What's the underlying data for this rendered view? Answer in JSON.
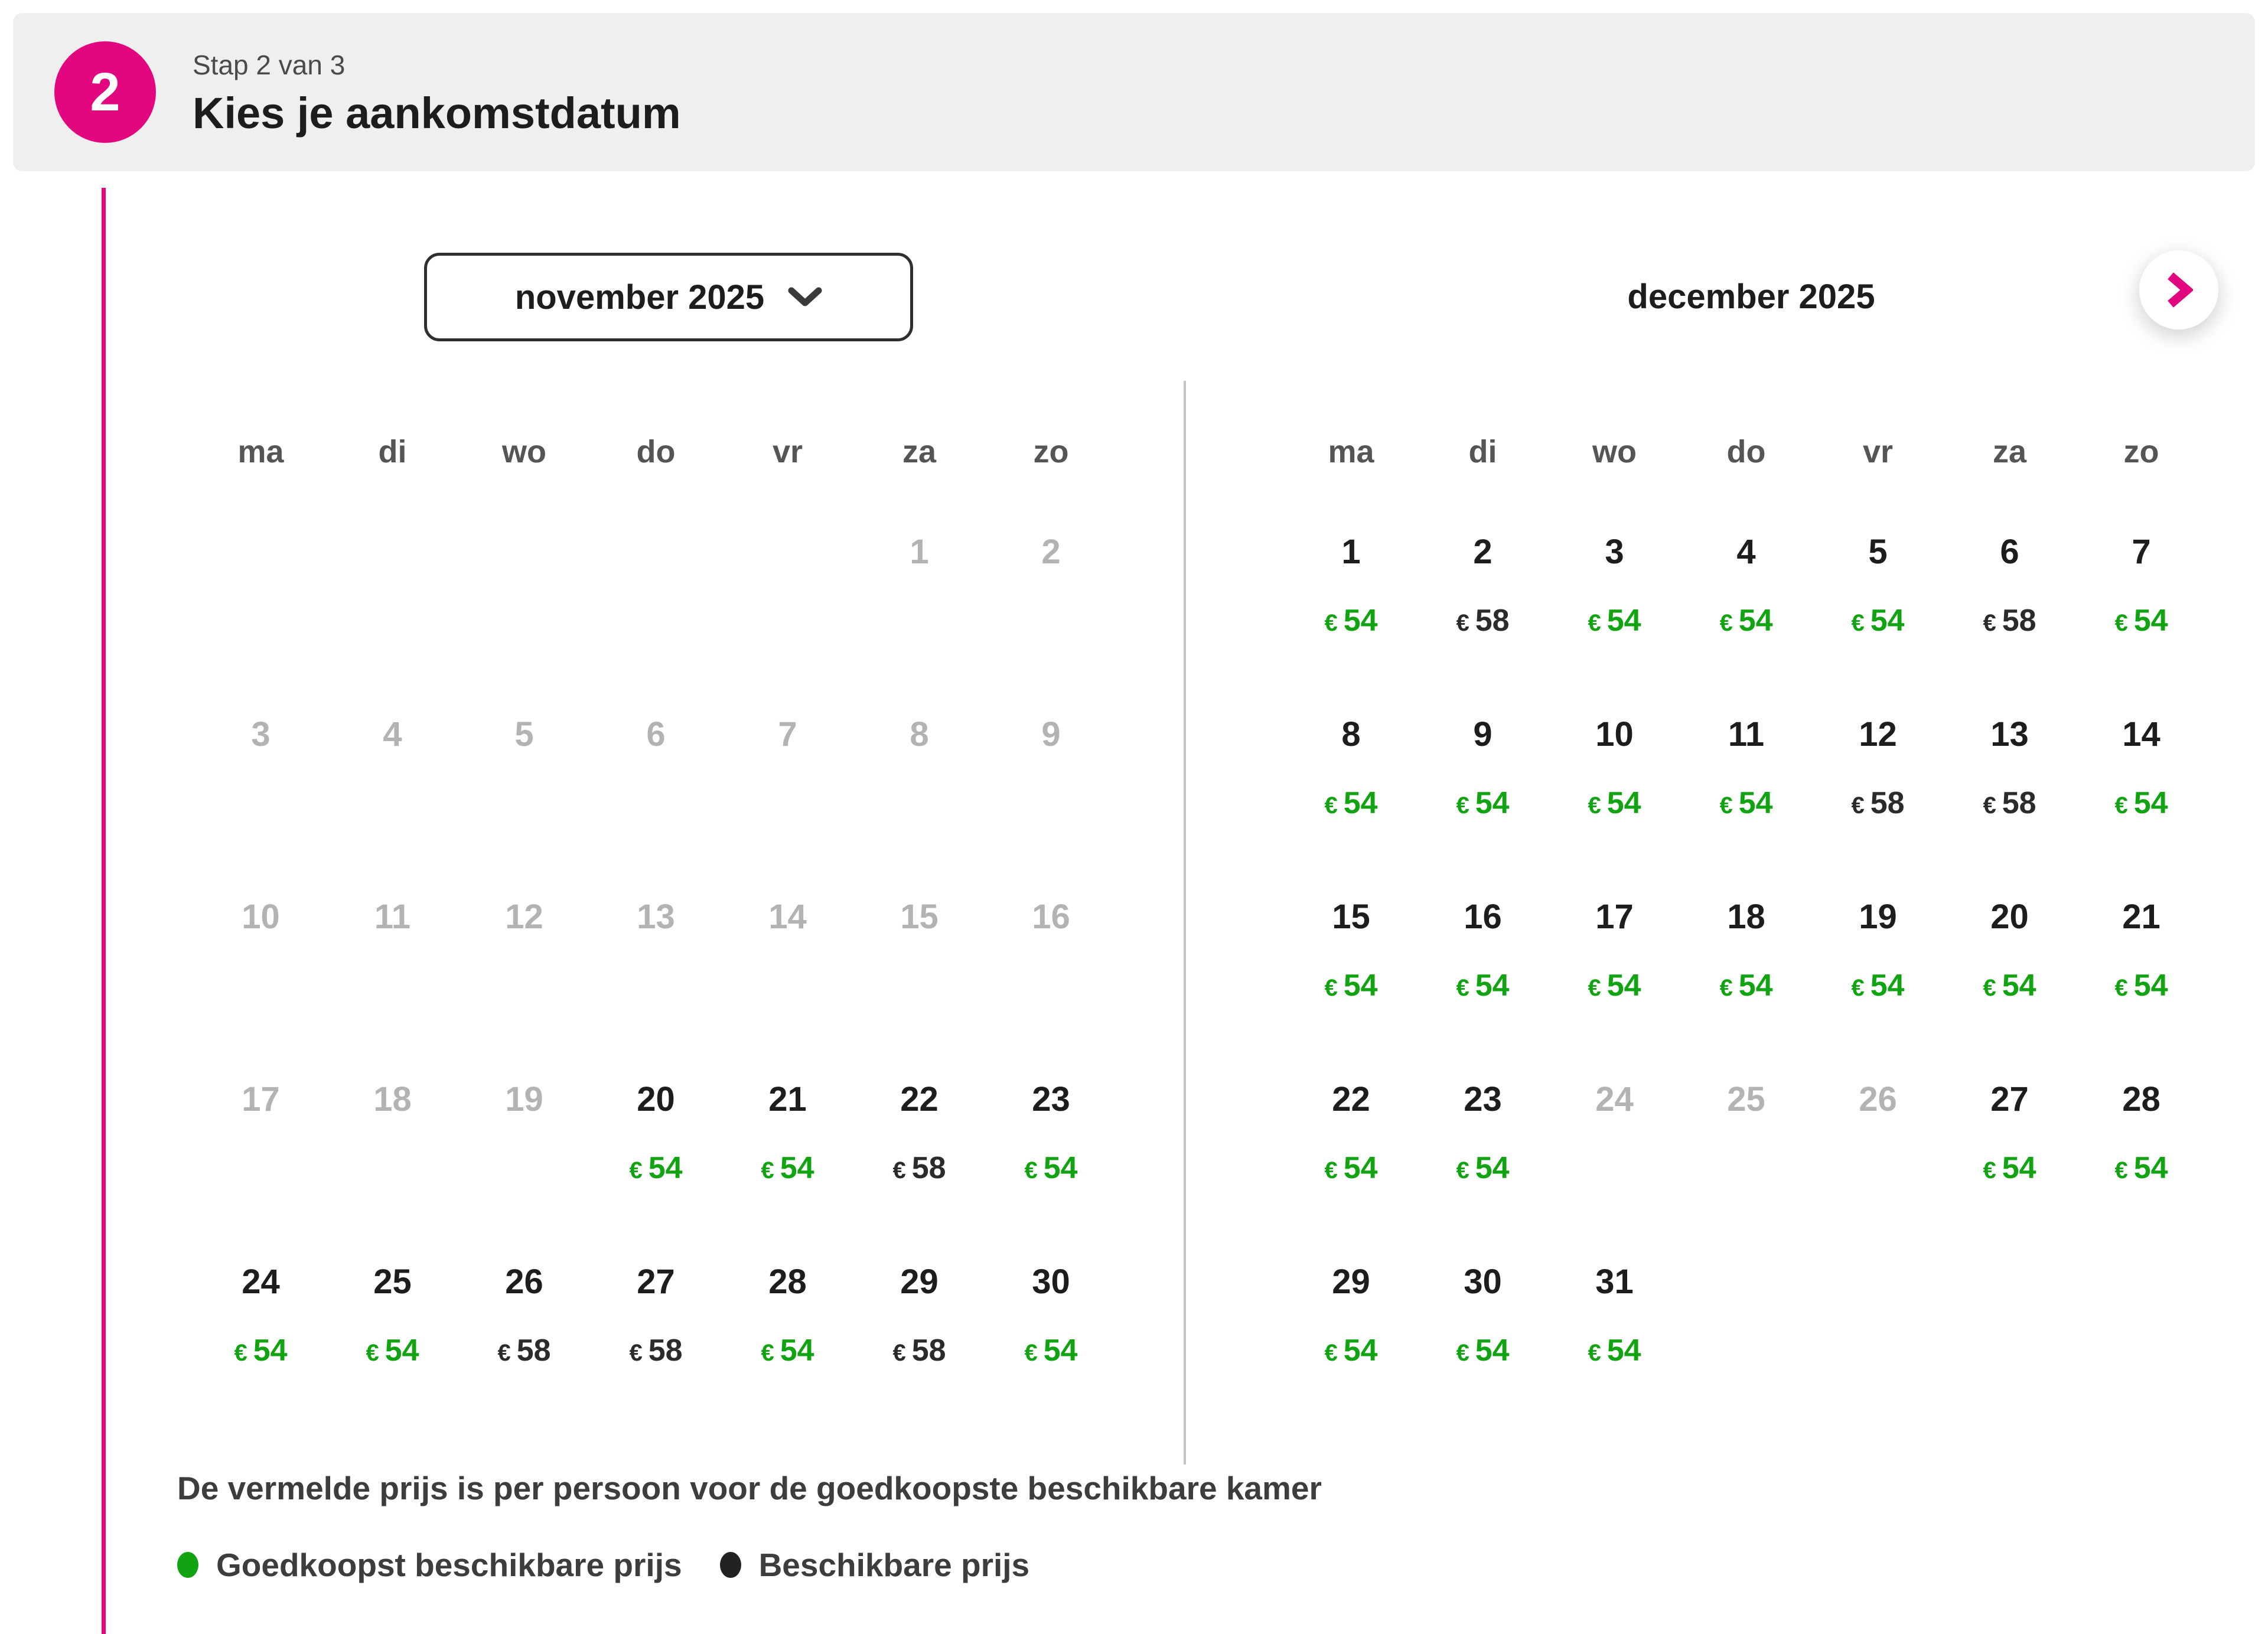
{
  "colors": {
    "pink": "#e2077e",
    "green": "#12a312",
    "price_dark": "#2b2b2b",
    "disabled_gray": "#b3b3b3",
    "header_bg": "#efefef"
  },
  "header": {
    "step_number": "2",
    "step_label": "Stap 2 van 3",
    "title": "Kies je aankomstdatum"
  },
  "calendar": {
    "selector_label": "november 2025",
    "second_month_title": "december 2025",
    "weekdays": [
      "ma",
      "di",
      "wo",
      "do",
      "vr",
      "za",
      "zo"
    ],
    "currency": "€",
    "months": [
      {
        "title": "november 2025",
        "weeks": [
          [
            null,
            null,
            null,
            null,
            null,
            {
              "day": "1",
              "state": "disabled"
            },
            {
              "day": "2",
              "state": "disabled"
            }
          ],
          [
            {
              "day": "3",
              "state": "disabled"
            },
            {
              "day": "4",
              "state": "disabled"
            },
            {
              "day": "5",
              "state": "disabled"
            },
            {
              "day": "6",
              "state": "disabled"
            },
            {
              "day": "7",
              "state": "disabled"
            },
            {
              "day": "8",
              "state": "disabled"
            },
            {
              "day": "9",
              "state": "disabled"
            }
          ],
          [
            {
              "day": "10",
              "state": "disabled"
            },
            {
              "day": "11",
              "state": "disabled"
            },
            {
              "day": "12",
              "state": "disabled"
            },
            {
              "day": "13",
              "state": "disabled"
            },
            {
              "day": "14",
              "state": "disabled"
            },
            {
              "day": "15",
              "state": "disabled"
            },
            {
              "day": "16",
              "state": "disabled"
            }
          ],
          [
            {
              "day": "17",
              "state": "disabled"
            },
            {
              "day": "18",
              "state": "disabled"
            },
            {
              "day": "19",
              "state": "disabled"
            },
            {
              "day": "20",
              "state": "available",
              "price": "54",
              "price_type": "cheapest"
            },
            {
              "day": "21",
              "state": "available",
              "price": "54",
              "price_type": "cheapest"
            },
            {
              "day": "22",
              "state": "available",
              "price": "58",
              "price_type": "regular"
            },
            {
              "day": "23",
              "state": "available",
              "price": "54",
              "price_type": "cheapest"
            }
          ],
          [
            {
              "day": "24",
              "state": "available",
              "price": "54",
              "price_type": "cheapest"
            },
            {
              "day": "25",
              "state": "available",
              "price": "54",
              "price_type": "cheapest"
            },
            {
              "day": "26",
              "state": "available",
              "price": "58",
              "price_type": "regular"
            },
            {
              "day": "27",
              "state": "available",
              "price": "58",
              "price_type": "regular"
            },
            {
              "day": "28",
              "state": "available",
              "price": "54",
              "price_type": "cheapest"
            },
            {
              "day": "29",
              "state": "available",
              "price": "58",
              "price_type": "regular"
            },
            {
              "day": "30",
              "state": "available",
              "price": "54",
              "price_type": "cheapest"
            }
          ]
        ]
      },
      {
        "title": "december 2025",
        "weeks": [
          [
            {
              "day": "1",
              "state": "available",
              "price": "54",
              "price_type": "cheapest"
            },
            {
              "day": "2",
              "state": "available",
              "price": "58",
              "price_type": "regular"
            },
            {
              "day": "3",
              "state": "available",
              "price": "54",
              "price_type": "cheapest"
            },
            {
              "day": "4",
              "state": "available",
              "price": "54",
              "price_type": "cheapest"
            },
            {
              "day": "5",
              "state": "available",
              "price": "54",
              "price_type": "cheapest"
            },
            {
              "day": "6",
              "state": "available",
              "price": "58",
              "price_type": "regular"
            },
            {
              "day": "7",
              "state": "available",
              "price": "54",
              "price_type": "cheapest"
            }
          ],
          [
            {
              "day": "8",
              "state": "available",
              "price": "54",
              "price_type": "cheapest"
            },
            {
              "day": "9",
              "state": "available",
              "price": "54",
              "price_type": "cheapest"
            },
            {
              "day": "10",
              "state": "available",
              "price": "54",
              "price_type": "cheapest"
            },
            {
              "day": "11",
              "state": "available",
              "price": "54",
              "price_type": "cheapest"
            },
            {
              "day": "12",
              "state": "available",
              "price": "58",
              "price_type": "regular"
            },
            {
              "day": "13",
              "state": "available",
              "price": "58",
              "price_type": "regular"
            },
            {
              "day": "14",
              "state": "available",
              "price": "54",
              "price_type": "cheapest"
            }
          ],
          [
            {
              "day": "15",
              "state": "available",
              "price": "54",
              "price_type": "cheapest"
            },
            {
              "day": "16",
              "state": "available",
              "price": "54",
              "price_type": "cheapest"
            },
            {
              "day": "17",
              "state": "available",
              "price": "54",
              "price_type": "cheapest"
            },
            {
              "day": "18",
              "state": "available",
              "price": "54",
              "price_type": "cheapest"
            },
            {
              "day": "19",
              "state": "available",
              "price": "54",
              "price_type": "cheapest"
            },
            {
              "day": "20",
              "state": "available",
              "price": "54",
              "price_type": "cheapest"
            },
            {
              "day": "21",
              "state": "available",
              "price": "54",
              "price_type": "cheapest"
            }
          ],
          [
            {
              "day": "22",
              "state": "available",
              "price": "54",
              "price_type": "cheapest"
            },
            {
              "day": "23",
              "state": "available",
              "price": "54",
              "price_type": "cheapest"
            },
            {
              "day": "24",
              "state": "disabled"
            },
            {
              "day": "25",
              "state": "disabled"
            },
            {
              "day": "26",
              "state": "disabled"
            },
            {
              "day": "27",
              "state": "available",
              "price": "54",
              "price_type": "cheapest"
            },
            {
              "day": "28",
              "state": "available",
              "price": "54",
              "price_type": "cheapest"
            }
          ],
          [
            {
              "day": "29",
              "state": "available",
              "price": "54",
              "price_type": "cheapest"
            },
            {
              "day": "30",
              "state": "available",
              "price": "54",
              "price_type": "cheapest"
            },
            {
              "day": "31",
              "state": "available",
              "price": "54",
              "price_type": "cheapest"
            },
            null,
            null,
            null,
            null
          ]
        ]
      }
    ]
  },
  "footer": {
    "note": "De vermelde prijs is per persoon voor de goedkoopste beschikbare kamer",
    "legend": [
      {
        "type": "cheapest",
        "label": "Goedkoopst beschikbare prijs"
      },
      {
        "type": "regular",
        "label": "Beschikbare prijs"
      }
    ]
  }
}
